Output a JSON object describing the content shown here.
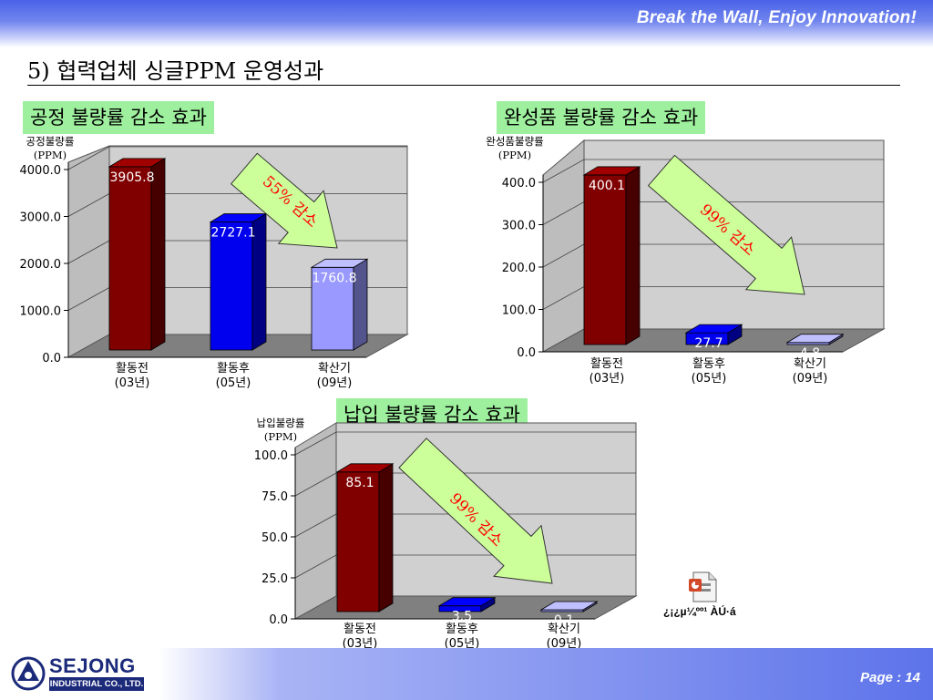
{
  "header": {
    "slogan": "Break the Wall, Enjoy Innovation!"
  },
  "slide": {
    "title": "5) 협력업체 싱글PPM 운영성과"
  },
  "footer": {
    "company_name": "SEJONG",
    "company_sub": "INDUSTRIAL CO., LTD.",
    "page_label": "Page : 14"
  },
  "attachment": {
    "caption": "¿¡¿µ¼ºº¹ ÀÚ·á"
  },
  "chart_data": [
    {
      "type": "bar",
      "label": "공정 불량률 감소 효과",
      "ylabel": [
        "공정불량률",
        "(PPM)"
      ],
      "categories": [
        [
          "활동전",
          "(03년)"
        ],
        [
          "활동후",
          "(05년)"
        ],
        [
          "확산기",
          "(09년)"
        ]
      ],
      "values": [
        3905.8,
        2727.1,
        1760.8
      ],
      "value_labels": [
        "3905.8",
        "2727.1",
        "1760.8"
      ],
      "ylim": [
        0,
        4000
      ],
      "yticks": [
        "0.0",
        "1000.0",
        "2000.0",
        "3000.0",
        "4000.0"
      ],
      "bar_colors": [
        "#800000",
        "#0000ee",
        "#9999ff"
      ],
      "annotation": "55% 감소",
      "grid": true
    },
    {
      "type": "bar",
      "label": "완성품 불량률 감소 효과",
      "ylabel": [
        "완성품불량률",
        "(PPM)"
      ],
      "categories": [
        [
          "활동전",
          "(03년)"
        ],
        [
          "활동후",
          "(05년)"
        ],
        [
          "확산기",
          "(09년)"
        ]
      ],
      "values": [
        400.1,
        27.7,
        4.8
      ],
      "value_labels": [
        "400.1",
        "27.7",
        "4.8"
      ],
      "ylim": [
        0,
        400
      ],
      "yticks": [
        "0.0",
        "100.0",
        "200.0",
        "300.0",
        "400.0"
      ],
      "bar_colors": [
        "#800000",
        "#0000ee",
        "#9999ff"
      ],
      "annotation": "99% 감소",
      "grid": true
    },
    {
      "type": "bar",
      "label": "납입 불량률 감소 효과",
      "ylabel": [
        "납입불량률",
        "(PPM)"
      ],
      "categories": [
        [
          "활동전",
          "(03년)"
        ],
        [
          "활동후",
          "(05년)"
        ],
        [
          "확산기",
          "(09년)"
        ]
      ],
      "values": [
        85.1,
        3.5,
        0.1
      ],
      "value_labels": [
        "85.1",
        "3.5",
        "0.1"
      ],
      "ylim": [
        0,
        100
      ],
      "yticks": [
        "0.0",
        "25.0",
        "50.0",
        "75.0",
        "100.0"
      ],
      "bar_colors": [
        "#800000",
        "#0000ee",
        "#9999ff"
      ],
      "annotation": "99% 감소",
      "grid": true
    }
  ]
}
